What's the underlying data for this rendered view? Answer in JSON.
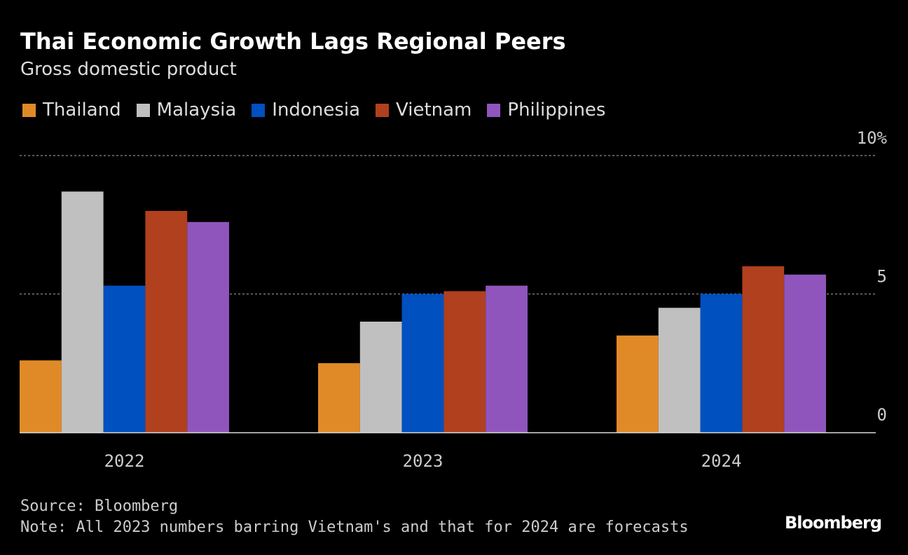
{
  "chart_data": {
    "type": "bar",
    "title": "Thai Economic Growth Lags Regional Peers",
    "subtitle": "Gross domestic product",
    "categories": [
      "2022",
      "2023",
      "2024"
    ],
    "series": [
      {
        "name": "Thailand",
        "color": "#e08a27",
        "values": [
          2.6,
          2.5,
          3.5
        ]
      },
      {
        "name": "Malaysia",
        "color": "#c0c0c0",
        "values": [
          8.7,
          4.0,
          4.5
        ]
      },
      {
        "name": "Indonesia",
        "color": "#0050c0",
        "values": [
          5.3,
          5.0,
          5.0
        ]
      },
      {
        "name": "Vietnam",
        "color": "#b0401e",
        "values": [
          8.0,
          5.1,
          6.0
        ]
      },
      {
        "name": "Philippines",
        "color": "#8f55bd",
        "values": [
          7.6,
          5.3,
          5.7
        ]
      }
    ],
    "yticks": [
      {
        "value": 0,
        "label": "0"
      },
      {
        "value": 5,
        "label": "5"
      },
      {
        "value": 10,
        "label": "10%"
      }
    ],
    "ylim": [
      0,
      10
    ],
    "grid": true,
    "legend": "top-left"
  },
  "footer": {
    "source": "Source: Bloomberg",
    "note": "Note: All 2023 numbers barring Vietnam's and that for 2024 are forecasts",
    "logo": "Bloomberg"
  }
}
